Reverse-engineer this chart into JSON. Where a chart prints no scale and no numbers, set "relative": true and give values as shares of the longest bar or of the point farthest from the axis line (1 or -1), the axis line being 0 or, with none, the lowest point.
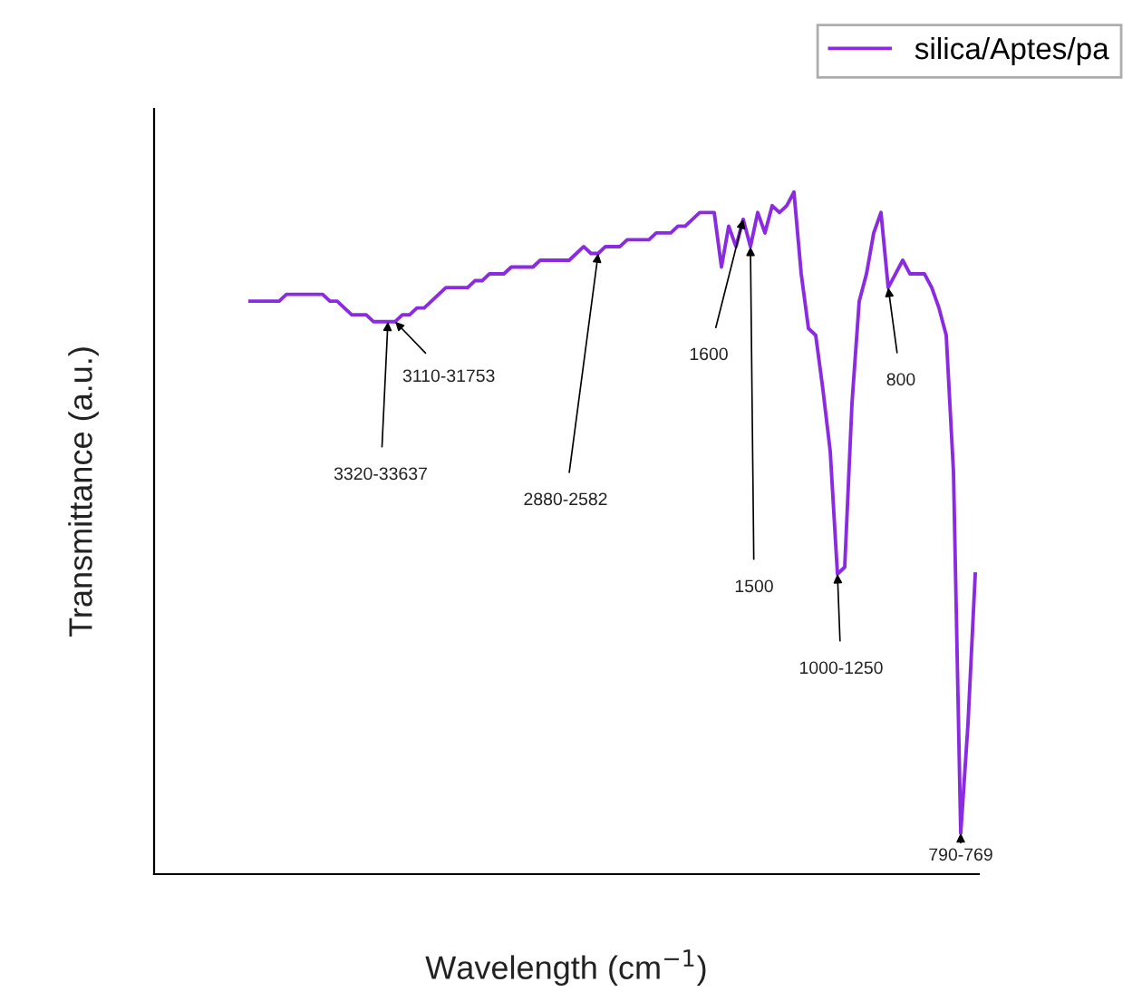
{
  "chart_data": {
    "type": "line",
    "relative": true,
    "legend": "top right",
    "xlabel": "Wavelength (cm$^{−1}$)",
    "ylabel": "Transmittance (a.u.)",
    "categories": [
      null,
      null,
      null,
      null,
      null,
      null,
      null,
      null,
      null,
      null,
      null,
      null,
      null,
      null,
      null,
      null,
      null,
      null,
      null,
      null,
      null,
      null,
      null,
      null,
      null,
      null,
      null,
      null,
      null,
      null,
      null,
      null,
      null,
      null,
      null,
      null,
      null,
      null,
      null,
      null,
      null,
      null,
      null,
      null,
      null,
      null,
      null,
      null,
      null,
      null,
      null,
      null,
      null,
      null,
      null,
      null,
      null,
      null,
      null,
      null,
      null,
      null,
      null,
      null,
      null,
      null,
      null,
      null,
      null,
      null,
      null,
      null,
      null,
      null,
      null,
      null,
      null,
      null,
      null,
      null,
      null,
      null,
      null,
      null,
      null,
      null,
      null,
      null,
      null,
      null,
      null,
      null,
      null,
      null,
      null,
      null,
      null,
      null,
      null,
      null,
      null
    ],
    "series": [
      {
        "name": "silica/Aptes/pa",
        "color": "#8a2be2",
        "values": [
          0.84,
          0.84,
          0.84,
          0.84,
          0.84,
          0.85,
          0.85,
          0.85,
          0.85,
          0.85,
          0.85,
          0.84,
          0.84,
          0.83,
          0.82,
          0.82,
          0.82,
          0.81,
          0.81,
          0.81,
          0.81,
          0.82,
          0.82,
          0.83,
          0.83,
          0.84,
          0.85,
          0.86,
          0.86,
          0.86,
          0.86,
          0.87,
          0.87,
          0.88,
          0.88,
          0.88,
          0.89,
          0.89,
          0.89,
          0.89,
          0.9,
          0.9,
          0.9,
          0.9,
          0.9,
          0.91,
          0.92,
          0.91,
          0.91,
          0.92,
          0.92,
          0.92,
          0.93,
          0.93,
          0.93,
          0.93,
          0.94,
          0.94,
          0.94,
          0.95,
          0.95,
          0.96,
          0.97,
          0.97,
          0.97,
          0.89,
          0.95,
          0.92,
          0.96,
          0.92,
          0.97,
          0.94,
          0.98,
          0.97,
          0.98,
          1.0,
          0.88,
          0.8,
          0.79,
          0.71,
          0.62,
          0.44,
          0.45,
          0.69,
          0.84,
          0.88,
          0.94,
          0.97,
          0.86,
          0.88,
          0.9,
          0.88,
          0.88,
          0.88,
          0.86,
          0.83,
          0.79,
          0.59,
          0.06,
          0.22,
          0.44
        ]
      }
    ],
    "annotations": [
      "3110-31753",
      "3320-33637",
      "2880-2582",
      "1600",
      "1500",
      "1000-1250",
      "800",
      "790-769"
    ]
  }
}
